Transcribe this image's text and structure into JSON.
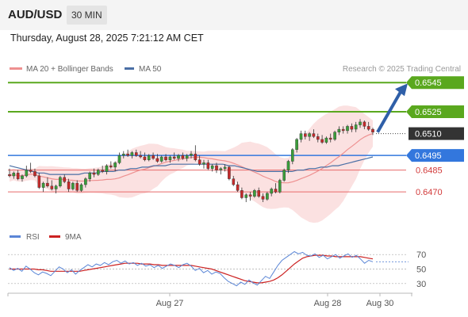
{
  "header": {
    "pair": "AUD/USD",
    "timeframe": "30 MIN",
    "datetime": "Thursday, August 28, 2025 7:21:12 AM CET"
  },
  "legend": {
    "bb_label": "MA 20 + Bollinger Bands",
    "ma50_label": "MA 50",
    "credit": "Research © 2025 Trading Central",
    "rsi_label": "RSI",
    "ma9_label": "9MA"
  },
  "colors": {
    "up": "#3a9e3a",
    "down": "#c62a2a",
    "target": "#5aa81e",
    "pivot": "#3377dd",
    "support": "#e86a6a",
    "current": "#333333",
    "band": "#fadcdc",
    "ma20": "#ee9090",
    "ma50": "#4a6fa5",
    "rsi": "#5b86d6",
    "rsi_ma": "#cc2222",
    "arrow": "#2f5fa8"
  },
  "chart_data": [
    {
      "type": "candlestick",
      "title": "AUD/USD",
      "timeframe": "30 MIN",
      "x_labels": [
        "Aug 27",
        "Aug 28",
        "Aug 30"
      ],
      "ylim": [
        0.6444,
        0.655
      ],
      "ohlc": [
        [
          0.6482,
          0.6486,
          0.648,
          0.6481
        ],
        [
          0.6481,
          0.6484,
          0.6479,
          0.6483
        ],
        [
          0.6483,
          0.6485,
          0.6478,
          0.6479
        ],
        [
          0.6479,
          0.6482,
          0.6477,
          0.6481
        ],
        [
          0.6481,
          0.6488,
          0.648,
          0.6485
        ],
        [
          0.6485,
          0.649,
          0.6483,
          0.6484
        ],
        [
          0.6484,
          0.6486,
          0.648,
          0.6481
        ],
        [
          0.6481,
          0.6483,
          0.6472,
          0.6473
        ],
        [
          0.6473,
          0.6477,
          0.647,
          0.6476
        ],
        [
          0.6476,
          0.648,
          0.6473,
          0.6474
        ],
        [
          0.6474,
          0.6478,
          0.6471,
          0.6472
        ],
        [
          0.6472,
          0.6475,
          0.6469,
          0.6474
        ],
        [
          0.6474,
          0.6481,
          0.6473,
          0.648
        ],
        [
          0.648,
          0.6482,
          0.6476,
          0.6477
        ],
        [
          0.6477,
          0.6479,
          0.647,
          0.6472
        ],
        [
          0.6472,
          0.6477,
          0.6471,
          0.6476
        ],
        [
          0.6476,
          0.6478,
          0.647,
          0.6471
        ],
        [
          0.6471,
          0.6476,
          0.647,
          0.6475
        ],
        [
          0.6475,
          0.648,
          0.6473,
          0.6479
        ],
        [
          0.6479,
          0.6484,
          0.6477,
          0.6483
        ],
        [
          0.6483,
          0.6486,
          0.648,
          0.6482
        ],
        [
          0.6482,
          0.6486,
          0.6481,
          0.6485
        ],
        [
          0.6485,
          0.6488,
          0.6483,
          0.6484
        ],
        [
          0.6484,
          0.6489,
          0.6482,
          0.6488
        ],
        [
          0.6488,
          0.6491,
          0.6486,
          0.6487
        ],
        [
          0.6487,
          0.6491,
          0.6484,
          0.649
        ],
        [
          0.649,
          0.6497,
          0.6489,
          0.6495
        ],
        [
          0.6495,
          0.6498,
          0.6493,
          0.6496
        ],
        [
          0.6496,
          0.6499,
          0.6494,
          0.6495
        ],
        [
          0.6495,
          0.6498,
          0.6493,
          0.6497
        ],
        [
          0.6497,
          0.6499,
          0.6494,
          0.6495
        ],
        [
          0.6495,
          0.6498,
          0.6493,
          0.6494
        ],
        [
          0.6494,
          0.6497,
          0.6491,
          0.6492
        ],
        [
          0.6492,
          0.6496,
          0.6491,
          0.6495
        ],
        [
          0.6495,
          0.6497,
          0.6492,
          0.6493
        ],
        [
          0.6493,
          0.6496,
          0.649,
          0.6491
        ],
        [
          0.6491,
          0.6495,
          0.649,
          0.6494
        ],
        [
          0.6494,
          0.6496,
          0.6491,
          0.6492
        ],
        [
          0.6492,
          0.6495,
          0.649,
          0.6494
        ],
        [
          0.6494,
          0.6497,
          0.6492,
          0.6493
        ],
        [
          0.6493,
          0.6496,
          0.6491,
          0.6495
        ],
        [
          0.6495,
          0.6497,
          0.6492,
          0.6493
        ],
        [
          0.6493,
          0.6496,
          0.6491,
          0.6495
        ],
        [
          0.6495,
          0.6498,
          0.6493,
          0.6496
        ],
        [
          0.6496,
          0.6502,
          0.6491,
          0.6492
        ],
        [
          0.6492,
          0.6495,
          0.6488,
          0.6489
        ],
        [
          0.6489,
          0.6492,
          0.6486,
          0.649
        ],
        [
          0.649,
          0.6492,
          0.6485,
          0.6486
        ],
        [
          0.6486,
          0.6489,
          0.6484,
          0.6488
        ],
        [
          0.6488,
          0.649,
          0.6483,
          0.6485
        ],
        [
          0.6485,
          0.6487,
          0.6482,
          0.6486
        ],
        [
          0.6486,
          0.6489,
          0.6484,
          0.6487
        ],
        [
          0.6487,
          0.6488,
          0.6478,
          0.6479
        ],
        [
          0.6479,
          0.6481,
          0.6474,
          0.6475
        ],
        [
          0.6475,
          0.6477,
          0.647,
          0.6471
        ],
        [
          0.6471,
          0.6473,
          0.6465,
          0.6466
        ],
        [
          0.6466,
          0.6469,
          0.6463,
          0.6468
        ],
        [
          0.6468,
          0.647,
          0.6464,
          0.6467
        ],
        [
          0.6467,
          0.6472,
          0.6466,
          0.6471
        ],
        [
          0.6471,
          0.6473,
          0.6466,
          0.6467
        ],
        [
          0.6467,
          0.6469,
          0.6463,
          0.6465
        ],
        [
          0.6465,
          0.647,
          0.6464,
          0.6469
        ],
        [
          0.6469,
          0.6473,
          0.6467,
          0.6472
        ],
        [
          0.6472,
          0.6476,
          0.6469,
          0.647
        ],
        [
          0.647,
          0.6479,
          0.6469,
          0.6478
        ],
        [
          0.6478,
          0.6486,
          0.6477,
          0.6485
        ],
        [
          0.6485,
          0.6492,
          0.6483,
          0.6491
        ],
        [
          0.6491,
          0.65,
          0.6489,
          0.6499
        ],
        [
          0.6499,
          0.6507,
          0.6497,
          0.6506
        ],
        [
          0.6506,
          0.6512,
          0.6504,
          0.651
        ],
        [
          0.651,
          0.6512,
          0.6506,
          0.6508
        ],
        [
          0.6508,
          0.6511,
          0.6505,
          0.651
        ],
        [
          0.651,
          0.6513,
          0.6507,
          0.6508
        ],
        [
          0.6508,
          0.651,
          0.6504,
          0.6506
        ],
        [
          0.6506,
          0.6509,
          0.6503,
          0.6504
        ],
        [
          0.6504,
          0.6508,
          0.6503,
          0.6507
        ],
        [
          0.6507,
          0.651,
          0.6504,
          0.6506
        ],
        [
          0.6506,
          0.6512,
          0.6505,
          0.6511
        ],
        [
          0.6511,
          0.6515,
          0.6509,
          0.6513
        ],
        [
          0.6513,
          0.6515,
          0.651,
          0.6512
        ],
        [
          0.6512,
          0.6516,
          0.651,
          0.6515
        ],
        [
          0.6515,
          0.6517,
          0.6511,
          0.6513
        ],
        [
          0.6513,
          0.6518,
          0.6511,
          0.6516
        ],
        [
          0.6516,
          0.652,
          0.6514,
          0.6518
        ],
        [
          0.6518,
          0.6519,
          0.6513,
          0.6515
        ],
        [
          0.6515,
          0.6518,
          0.6512,
          0.6513
        ],
        [
          0.6513,
          0.6514,
          0.6509,
          0.6511
        ]
      ],
      "levels": [
        {
          "value": 0.6545,
          "label": "0.6545",
          "kind": "target"
        },
        {
          "value": 0.6525,
          "label": "0.6525",
          "kind": "target"
        },
        {
          "value": 0.651,
          "label": "0.6510",
          "kind": "current"
        },
        {
          "value": 0.6495,
          "label": "0.6495",
          "kind": "pivot"
        },
        {
          "value": 0.6485,
          "label": "0.6485",
          "kind": "support"
        },
        {
          "value": 0.647,
          "label": "0.6470",
          "kind": "support"
        }
      ],
      "ma50": [
        0.6488,
        0.6487,
        0.6486,
        0.6485,
        0.6484,
        0.6483,
        0.6483,
        0.6482,
        0.6482,
        0.6482,
        0.6482,
        0.6482,
        0.6482,
        0.6483,
        0.6483,
        0.6483,
        0.6484,
        0.6484,
        0.6484,
        0.6485,
        0.6485,
        0.6486,
        0.6486,
        0.6487,
        0.6487,
        0.6488,
        0.6488,
        0.6488,
        0.6489,
        0.6489,
        0.6489,
        0.6489,
        0.6489,
        0.6489,
        0.6489,
        0.6489,
        0.6489,
        0.6489,
        0.6488,
        0.6488,
        0.6487,
        0.6486,
        0.6485,
        0.6484,
        0.6484,
        0.6484,
        0.6484,
        0.6484,
        0.6484,
        0.6484,
        0.6485,
        0.6485,
        0.6486,
        0.6486,
        0.6487,
        0.6487,
        0.6488,
        0.6488,
        0.6489,
        0.649,
        0.6491,
        0.6492,
        0.6493,
        0.6494
      ],
      "ma20_band_note": "MA 20 + Bollinger Bands",
      "rsi": {
        "levels": [
          70,
          50,
          30
        ],
        "ylim": [
          20,
          80
        ],
        "rsi_values": [
          52,
          48,
          51,
          47,
          54,
          50,
          45,
          42,
          46,
          44,
          41,
          47,
          53,
          50,
          45,
          49,
          43,
          48,
          52,
          56,
          53,
          57,
          55,
          59,
          56,
          60,
          62,
          58,
          61,
          57,
          59,
          55,
          58,
          54,
          56,
          52,
          55,
          51,
          54,
          57,
          55,
          52,
          56,
          58,
          54,
          48,
          51,
          45,
          48,
          43,
          46,
          44,
          38,
          33,
          30,
          27,
          32,
          29,
          35,
          31,
          28,
          34,
          40,
          37,
          46,
          55,
          62,
          66,
          70,
          74,
          71,
          73,
          69,
          68,
          71,
          66,
          69,
          64,
          67,
          70,
          65,
          68,
          71,
          66,
          69,
          64,
          58,
          62,
          60
        ],
        "ma9_values": [
          50,
          50,
          50,
          50,
          50,
          50,
          50,
          49,
          49,
          48,
          47,
          47,
          47,
          47,
          47,
          47,
          47,
          47,
          48,
          49,
          50,
          51,
          52,
          53,
          54,
          55,
          56,
          57,
          58,
          58,
          58,
          58,
          57,
          57,
          57,
          56,
          56,
          55,
          55,
          55,
          55,
          55,
          55,
          55,
          55,
          54,
          53,
          52,
          51,
          50,
          48,
          46,
          44,
          42,
          40,
          38,
          36,
          34,
          33,
          32,
          31,
          31,
          32,
          33,
          35,
          38,
          42,
          47,
          52,
          57,
          61,
          65,
          67,
          68,
          69,
          69,
          69,
          68,
          68,
          67,
          67,
          67,
          67,
          67,
          67,
          67,
          66,
          65,
          64
        ]
      }
    }
  ]
}
